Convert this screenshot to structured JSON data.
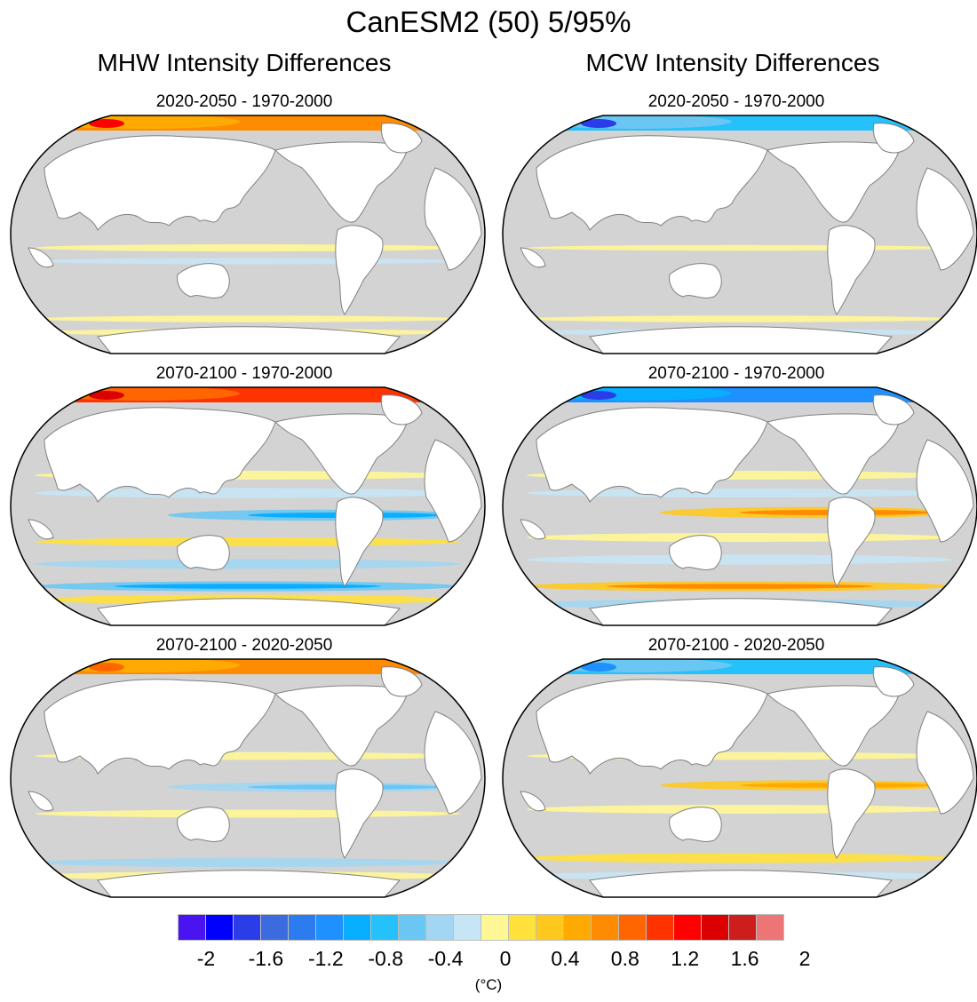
{
  "title": "CanESM2 (50) 5/95%",
  "columns": [
    {
      "title": "MHW Intensity Differences"
    },
    {
      "title": "MCW Intensity Differences"
    }
  ],
  "panels": [
    {
      "column": "MHW",
      "title": "2020-2050 - 1970-2000",
      "pattern": "mhw_near"
    },
    {
      "column": "MCW",
      "title": "2020-2050 - 1970-2000",
      "pattern": "mcw_near"
    },
    {
      "column": "MHW",
      "title": "2070-2100 - 1970-2000",
      "pattern": "mhw_far"
    },
    {
      "column": "MCW",
      "title": "2070-2100 - 1970-2000",
      "pattern": "mcw_far"
    },
    {
      "column": "MHW",
      "title": "2070-2100 - 2020-2050",
      "pattern": "mhw_diff"
    },
    {
      "column": "MCW",
      "title": "2070-2100 - 2020-2050",
      "pattern": "mcw_diff"
    }
  ],
  "colorbar": {
    "unit": "(°C)",
    "colors": [
      "#4a14f0",
      "#0000ff",
      "#2a3de8",
      "#3c6be0",
      "#2c7cf0",
      "#1e90ff",
      "#08aeff",
      "#24c1fb",
      "#6ac6f2",
      "#a2d6f2",
      "#c6e6f6",
      "#fff796",
      "#ffe13c",
      "#ffc81e",
      "#ffaa00",
      "#ff8c00",
      "#ff6600",
      "#ff3300",
      "#ff0000",
      "#dc0000",
      "#cd1e1e",
      "#ee7575"
    ],
    "tick_labels": [
      "-2",
      "-1.6",
      "-1.2",
      "-0.8",
      "-0.4",
      "0",
      "0.4",
      "0.8",
      "1.2",
      "1.6",
      "2"
    ],
    "levels": [
      -2.2,
      -2,
      -1.8,
      -1.6,
      -1.4,
      -1.2,
      -1,
      -0.8,
      -0.6,
      -0.4,
      -0.2,
      0,
      0.2,
      0.4,
      0.6,
      0.8,
      1,
      1.2,
      1.4,
      1.6,
      1.8,
      2,
      2.2
    ]
  },
  "ocean_color": "#d3d3d3",
  "coast_color": "#808080"
}
